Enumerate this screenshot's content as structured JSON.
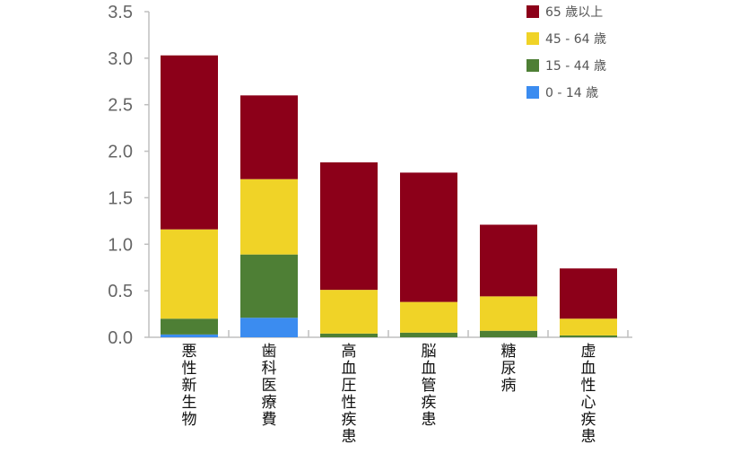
{
  "chart_data": {
    "type": "bar",
    "stacked": true,
    "categories": [
      "悪性新生物",
      "歯科医療費",
      "高血圧性疾患",
      "脳血管疾患",
      "糖尿病",
      "虚血性心疾患"
    ],
    "series": [
      {
        "name": "0 - 14 歳",
        "color": "#3b8cf0",
        "values": [
          0.03,
          0.21,
          0.0,
          0.0,
          0.0,
          0.0
        ]
      },
      {
        "name": "15 - 44 歳",
        "color": "#4e7f35",
        "values": [
          0.17,
          0.68,
          0.04,
          0.05,
          0.07,
          0.02
        ]
      },
      {
        "name": "45 - 64 歳",
        "color": "#f0d327",
        "values": [
          0.96,
          0.81,
          0.47,
          0.33,
          0.37,
          0.18
        ]
      },
      {
        "name": "65 歳以上",
        "color": "#8c0019",
        "values": [
          1.87,
          0.9,
          1.37,
          1.39,
          0.77,
          0.54
        ]
      }
    ],
    "ylim": [
      0,
      3.5
    ],
    "yticks": [
      "0.0",
      "0.5",
      "1.0",
      "1.5",
      "2.0",
      "2.5",
      "3.0",
      "3.5"
    ],
    "legend_position": "top-right",
    "legend_order": [
      3,
      2,
      1,
      0
    ],
    "grid": false,
    "title": "",
    "xlabel": "",
    "ylabel": ""
  }
}
